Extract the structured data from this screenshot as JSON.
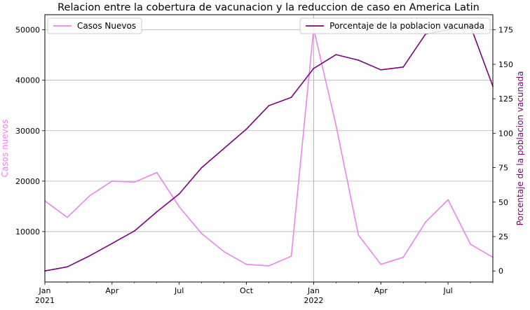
{
  "chart_data": {
    "type": "line",
    "title": "Relacion entre la cobertura de vacunacion y la reduccion de caso en America Latin",
    "x_axis": {
      "start": "2021-01",
      "end": "2022-09",
      "major_ticks": [
        {
          "date": "2021-01",
          "label": "Jan",
          "sublabel": "2021"
        },
        {
          "date": "2021-04",
          "label": "Apr",
          "sublabel": ""
        },
        {
          "date": "2021-07",
          "label": "Jul",
          "sublabel": ""
        },
        {
          "date": "2021-10",
          "label": "Oct",
          "sublabel": ""
        },
        {
          "date": "2022-01",
          "label": "Jan",
          "sublabel": "2022"
        },
        {
          "date": "2022-04",
          "label": "Apr",
          "sublabel": ""
        },
        {
          "date": "2022-07",
          "label": "Jul",
          "sublabel": ""
        }
      ]
    },
    "y_left": {
      "label": "Casos nuevos",
      "color": "#ee82ee",
      "range": [
        0,
        53000
      ],
      "ticks": [
        10000,
        20000,
        30000,
        40000,
        50000
      ]
    },
    "y_right": {
      "label": "Porcentaje de la poblacion vacunada",
      "color": "#800080",
      "range": [
        -8,
        186
      ],
      "ticks": [
        0,
        25,
        50,
        75,
        100,
        125,
        150,
        175
      ]
    },
    "grid": true,
    "vline_date": "2022-01",
    "x": [
      "2021-01",
      "2021-02",
      "2021-03",
      "2021-04",
      "2021-05",
      "2021-06",
      "2021-07",
      "2021-08",
      "2021-09",
      "2021-10",
      "2021-11",
      "2021-12",
      "2022-01",
      "2022-02",
      "2022-03",
      "2022-04",
      "2022-05",
      "2022-06",
      "2022-07",
      "2022-08",
      "2022-09"
    ],
    "series": [
      {
        "name": "Casos Nuevos",
        "axis": "left",
        "color": "#ee82ee",
        "legend_position": "top-left",
        "values": [
          16100,
          12800,
          17100,
          20000,
          19800,
          21700,
          14900,
          9600,
          6000,
          3500,
          3200,
          5100,
          50200,
          31000,
          9300,
          3500,
          4900,
          11900,
          16300,
          7500,
          4900
        ]
      },
      {
        "name": "Porcentaje de la poblacion vacunada",
        "axis": "right",
        "color": "#800080",
        "legend_position": "top-right",
        "values": [
          0,
          3,
          11,
          20,
          29,
          43,
          56,
          75,
          89,
          103,
          120,
          126,
          147,
          157,
          153,
          146,
          148,
          172,
          175,
          178,
          134
        ]
      }
    ]
  }
}
